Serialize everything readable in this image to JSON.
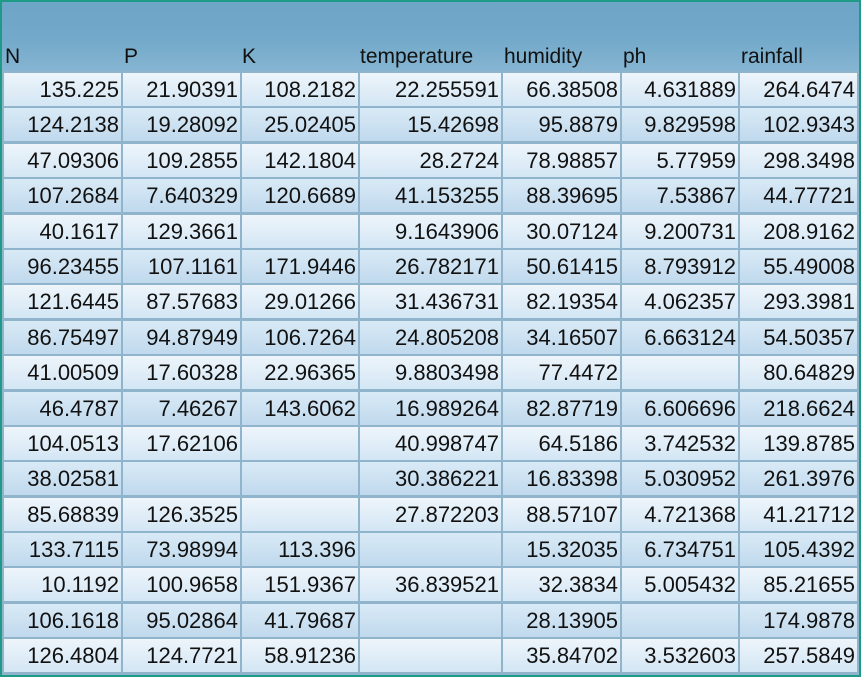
{
  "columns": [
    "N",
    "P",
    "K",
    "temperature",
    "humidity",
    "ph",
    "rainfall"
  ],
  "rows": [
    [
      "135.225",
      "21.90391",
      "108.2182",
      "22.255591",
      "66.38508",
      "4.631889",
      "264.6474"
    ],
    [
      "124.2138",
      "19.28092",
      "25.02405",
      "15.42698",
      "95.8879",
      "9.829598",
      "102.9343"
    ],
    [
      "47.09306",
      "109.2855",
      "142.1804",
      "28.2724",
      "78.98857",
      "5.77959",
      "298.3498"
    ],
    [
      "107.2684",
      "7.640329",
      "120.6689",
      "41.153255",
      "88.39695",
      "7.53867",
      "44.77721"
    ],
    [
      "40.1617",
      "129.3661",
      "",
      "9.1643906",
      "30.07124",
      "9.200731",
      "208.9162"
    ],
    [
      "96.23455",
      "107.1161",
      "171.9446",
      "26.782171",
      "50.61415",
      "8.793912",
      "55.49008"
    ],
    [
      "121.6445",
      "87.57683",
      "29.01266",
      "31.436731",
      "82.19354",
      "4.062357",
      "293.3981"
    ],
    [
      "86.75497",
      "94.87949",
      "106.7264",
      "24.805208",
      "34.16507",
      "6.663124",
      "54.50357"
    ],
    [
      "41.00509",
      "17.60328",
      "22.96365",
      "9.8803498",
      "77.4472",
      "",
      "80.64829"
    ],
    [
      "46.4787",
      "7.46267",
      "143.6062",
      "16.989264",
      "82.87719",
      "6.606696",
      "218.6624"
    ],
    [
      "104.0513",
      "17.62106",
      "",
      "40.998747",
      "64.5186",
      "3.742532",
      "139.8785"
    ],
    [
      "38.02581",
      "",
      "",
      "30.386221",
      "16.83398",
      "5.030952",
      "261.3976"
    ],
    [
      "85.68839",
      "126.3525",
      "",
      "27.872203",
      "88.57107",
      "4.721368",
      "41.21712"
    ],
    [
      "133.7115",
      "73.98994",
      "113.396",
      "",
      "15.32035",
      "6.734751",
      "105.4392"
    ],
    [
      "10.1192",
      "100.9658",
      "151.9367",
      "36.839521",
      "32.3834",
      "5.005432",
      "85.21655"
    ],
    [
      "106.1618",
      "95.02864",
      "41.79687",
      "",
      "28.13905",
      "",
      "174.9878"
    ],
    [
      "126.4804",
      "124.7721",
      "58.91236",
      "",
      "35.84702",
      "3.532603",
      "257.5849"
    ]
  ]
}
